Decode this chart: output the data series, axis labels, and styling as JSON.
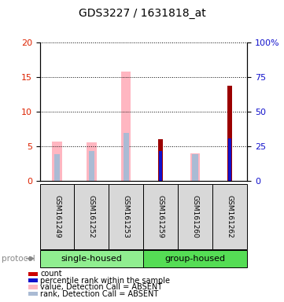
{
  "title": "GDS3227 / 1631818_at",
  "samples": [
    "GSM161249",
    "GSM161252",
    "GSM161253",
    "GSM161259",
    "GSM161260",
    "GSM161262"
  ],
  "ylim_left": [
    0,
    20
  ],
  "ylim_right": [
    0,
    100
  ],
  "yticks_left": [
    0,
    5,
    10,
    15,
    20
  ],
  "yticks_right": [
    0,
    25,
    50,
    75,
    100
  ],
  "count_values": [
    0,
    0,
    0,
    6.0,
    0,
    13.8
  ],
  "rank_values": [
    0,
    0,
    0,
    4.4,
    0,
    6.2
  ],
  "value_absent": [
    5.7,
    5.6,
    15.8,
    0,
    4.0,
    0
  ],
  "rank_absent": [
    3.9,
    4.4,
    7.0,
    0,
    3.9,
    0
  ],
  "color_count": "#9B0000",
  "color_rank": "#1111CC",
  "color_value_absent": "#FFB6C1",
  "color_rank_absent": "#AABBD4",
  "left_tick_color": "#DD2200",
  "right_tick_color": "#1111CC",
  "bg_color": "#D8D8D8",
  "single_color": "#90EE90",
  "group_color": "#55DD55",
  "legend_items": [
    {
      "color": "#CC0000",
      "label": "count"
    },
    {
      "color": "#1111CC",
      "label": "percentile rank within the sample"
    },
    {
      "color": "#FFB6C1",
      "label": "value, Detection Call = ABSENT"
    },
    {
      "color": "#AABBD4",
      "label": "rank, Detection Call = ABSENT"
    }
  ]
}
